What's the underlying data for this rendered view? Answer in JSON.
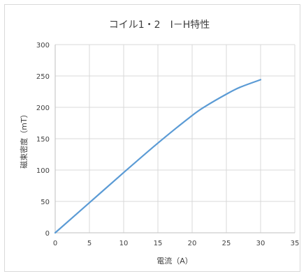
{
  "chart_data": {
    "type": "line",
    "title": "コイル1・2　I－H特性",
    "xlabel": "電流（A）",
    "ylabel": "磁束密度（mT）",
    "xlim": [
      0,
      35
    ],
    "ylim": [
      0,
      300
    ],
    "xticks": [
      0,
      5,
      10,
      15,
      20,
      25,
      30,
      35
    ],
    "yticks": [
      0,
      50,
      100,
      150,
      200,
      250,
      300
    ],
    "grid": true,
    "series": [
      {
        "color": "#5b9bd5",
        "x": [
          0,
          5,
          10,
          15,
          20,
          22,
          25,
          27,
          30
        ],
        "y": [
          0,
          48,
          96,
          143,
          187,
          202,
          221,
          232,
          244
        ]
      }
    ]
  }
}
